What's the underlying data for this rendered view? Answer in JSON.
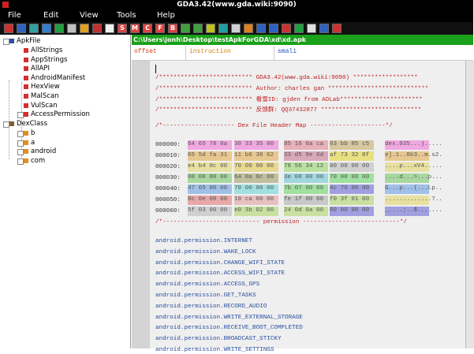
{
  "window": {
    "title": "GDA3.42(www.gda.wiki:9090)"
  },
  "menu": [
    "File",
    "Edit",
    "View",
    "Tools",
    "Help"
  ],
  "toolbar": [
    "S",
    "M",
    "C",
    "F",
    "B"
  ],
  "tree": {
    "root": "ApkFile",
    "root_children": [
      "AllStrings",
      "AppStrings",
      "AllAPI",
      "AndroidManifest",
      "HexView",
      "MalScan",
      "VulScan",
      "AccessPermission"
    ],
    "dex": "DexClass",
    "dex_children": [
      "b",
      "a",
      "android",
      "com"
    ]
  },
  "path": "C:\\Users\\jonh\\Desktop\\testApkForGDA\\xd\\xd.apk",
  "tabs": [
    "offset",
    "instruction",
    "smali"
  ],
  "editor": {
    "banner": [
      "/************************** GDA3.42(www.gda.wiki:9090) ******************",
      "/************************** Author: charles gan ****************************",
      "/************************** 看雪ID: gjden from ADLab***********************",
      "/************************** 反馈群: QQ37432877 ****************************"
    ],
    "hex_title": "/*-------------------- Dex File Header Map ---------------------*/",
    "hex_rows": [
      {
        "offset": "000000:",
        "bytes": [
          "64 65 78 0a",
          "30 33 35 00",
          "85 16 6a ca",
          "03 bb 85 c5"
        ],
        "ascii": "dex.035...j....."
      },
      {
        "offset": "000010:",
        "bytes": [
          "65 5d fa 31",
          "11 b6 38 62",
          "33 d5 9e 6d",
          "af 73 32 8f"
        ],
        "ascii": "e].1..8b3..m.s2."
      },
      {
        "offset": "000020:",
        "bytes": [
          "e4 b4 0c 00",
          "70 00 00 00",
          "78 56 34 12",
          "00 00 00 00"
        ],
        "ascii": "....p...xV4....."
      },
      {
        "offset": "000030:",
        "bytes": [
          "00 00 00 00",
          "64 0a 0c 00",
          "3e 00 00 00",
          "70 00 00 00"
        ],
        "ascii": "....d...>...p..."
      },
      {
        "offset": "000040:",
        "bytes": [
          "47 05 00 00",
          "70 00 00 00",
          "7b 07 00 00",
          "4c 70 00 00"
        ],
        "ascii": "G...p...{...Lp.."
      },
      {
        "offset": "000050:",
        "bytes": [
          "0c 0e 00 00",
          "10 ca 00 00",
          "fe 1f 00 00",
          "f0 3f 01 00"
        ],
        "ascii": ".............?.."
      },
      {
        "offset": "000060:",
        "bytes": [
          "5f 03 00 00",
          "e0 3b 02 00",
          "24 0d 0a 00",
          "00 00 00 00"
        ],
        "ascii": "_....;..$......."
      }
    ],
    "permission_title": "/*--------------------------- permission ---------------------------*/",
    "permissions": [
      "android.permission.INTERNET",
      "android.permission.WAKE_LOCK",
      "android.permission.CHANGE_WIFI_STATE",
      "android.permission.ACCESS_WIFI_STATE",
      "android.permission.ACCESS_GPS",
      "android.permission.GET_TASKS",
      "android.permission.RECORD_AUDIO",
      "android.permission.WRITE_EXTERNAL_STORAGE",
      "android.permission.RECEIVE_BOOT_COMPLETED",
      "android.permission.BROADCAST_STICKY",
      "android.permission.WRITE_SETTINGS"
    ]
  }
}
